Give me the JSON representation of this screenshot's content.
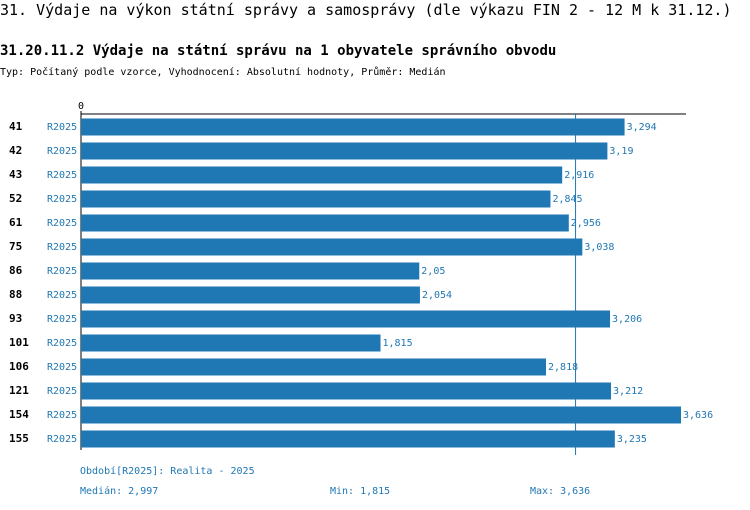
{
  "header": {
    "title": "31. Výdaje na výkon státní správy a samosprávy (dle výkazu FIN 2 - 12 M k 31.12.)",
    "subtitle": "31.20.11.2 Výdaje na státní správu na 1 obyvatele správního obvodu",
    "meta": "Typ: Počítaný podle vzorce, Vyhodnocení: Absolutní hodnoty, Průměr: Medián"
  },
  "footer": {
    "period": "Období[R2025]: Realita - 2025",
    "median": "Medián: 2,997",
    "min": "Min: 1,815",
    "max": "Max: 3,636"
  },
  "colors": {
    "bar": "#1f77b4",
    "label": "#1f77b4",
    "median_line": "#1f77b4"
  },
  "chart_data": {
    "type": "bar",
    "orientation": "horizontal",
    "axis_zero_label": "0",
    "categories": [
      "41",
      "42",
      "43",
      "52",
      "61",
      "75",
      "86",
      "88",
      "93",
      "101",
      "106",
      "121",
      "154",
      "155"
    ],
    "series_label": "R2025",
    "values": [
      3.294,
      3.19,
      2.916,
      2.845,
      2.956,
      3.038,
      2.05,
      2.054,
      3.206,
      1.815,
      2.818,
      3.212,
      3.636,
      3.235
    ],
    "value_labels": [
      "3,294",
      "3,19",
      "2,916",
      "2,845",
      "2,956",
      "3,038",
      "2,05",
      "2,054",
      "3,206",
      "1,815",
      "2,818",
      "3,212",
      "3,636",
      "3,235"
    ],
    "median": 2.997,
    "xlim": [
      0,
      3.636
    ]
  }
}
